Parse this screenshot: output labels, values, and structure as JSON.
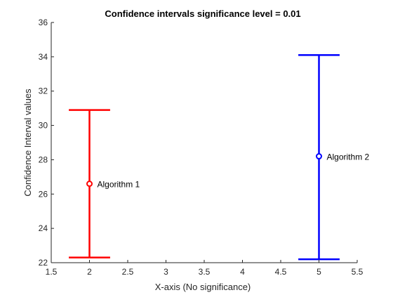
{
  "chart_data": {
    "type": "scatter",
    "title": "Confidence intervals  significance level = 0.01",
    "xlabel": "X-axis (No significance)",
    "ylabel": "Confidence Interval values",
    "xlim": [
      1.5,
      5.5
    ],
    "ylim": [
      22,
      36
    ],
    "xticks": [
      1.5,
      2,
      2.5,
      3,
      3.5,
      4,
      4.5,
      5,
      5.5
    ],
    "xtick_labels": [
      "1.5",
      "2",
      "2.5",
      "3",
      "3.5",
      "4",
      "4.5",
      "5",
      "5.5"
    ],
    "yticks": [
      22,
      24,
      26,
      28,
      30,
      32,
      34,
      36
    ],
    "ytick_labels": [
      "22",
      "24",
      "26",
      "28",
      "30",
      "32",
      "34",
      "36"
    ],
    "grid": false,
    "series": [
      {
        "label": "Algorithm 1",
        "x": 2,
        "y": 26.6,
        "lower": 22.3,
        "upper": 30.9,
        "cap_halfwidth": 0.27,
        "color": "#ff0000"
      },
      {
        "label": "Algorithm 2",
        "x": 5,
        "y": 28.2,
        "lower": 22.2,
        "upper": 34.1,
        "cap_halfwidth": 0.27,
        "color": "#0000ff"
      }
    ]
  }
}
